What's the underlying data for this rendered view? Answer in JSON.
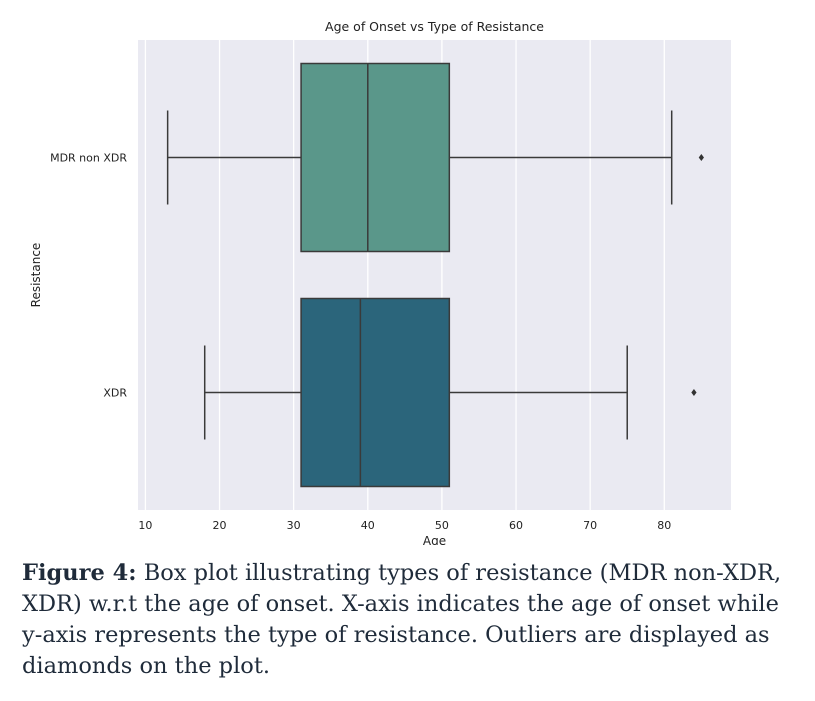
{
  "chart_data": {
    "type": "boxplot",
    "orientation": "horizontal",
    "title": "Age of Onset vs Type of Resistance",
    "xlabel": "Age",
    "ylabel": "Resistance",
    "xlim": [
      9,
      89
    ],
    "xticks": [
      10,
      20,
      30,
      40,
      50,
      60,
      70,
      80
    ],
    "grid": true,
    "categories": [
      "MDR non XDR",
      "XDR"
    ],
    "boxes": [
      {
        "category": "MDR non XDR",
        "whisker_low": 13,
        "q1": 31,
        "median": 40,
        "q3": 51,
        "whisker_high": 81,
        "outliers": [
          85
        ],
        "color": "#5a978a"
      },
      {
        "category": "XDR",
        "whisker_low": 18,
        "q1": 31,
        "median": 39,
        "q3": 51,
        "whisker_high": 75,
        "outliers": [
          84
        ],
        "color": "#2b657b"
      }
    ]
  },
  "caption": {
    "label": "Figure 4:",
    "text": " Box plot illustrating types of resistance (MDR non-XDR, XDR) w.r.t the age of onset. X-axis indicates the age of onset while y-axis represents the type of resistance. Outliers are displayed as diamonds on the plot."
  },
  "colors": {
    "plot_background": "#eaeaf2",
    "grid": "#ffffff",
    "line": "#3a3a3a"
  }
}
